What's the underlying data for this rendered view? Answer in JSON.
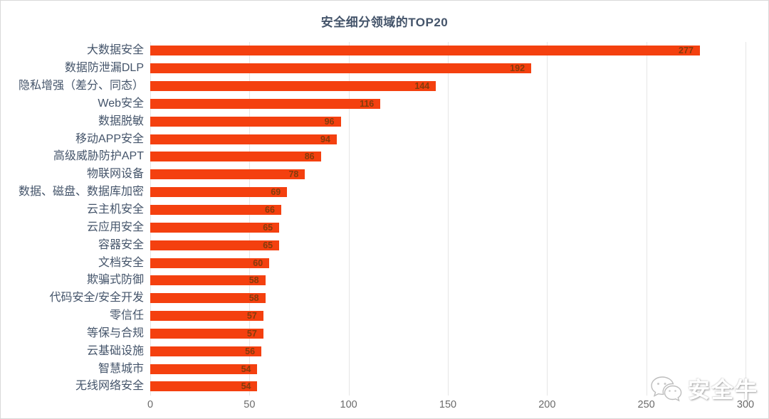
{
  "chart_data": {
    "type": "bar",
    "orientation": "horizontal",
    "title": "安全细分领域的TOP20",
    "categories": [
      "大数据安全",
      "数据防泄漏DLP",
      "隐私增强（差分、同态）",
      "Web安全",
      "数据脱敏",
      "移动APP安全",
      "高级威胁防护APT",
      "物联网设备",
      "数据、磁盘、数据库加密",
      "云主机安全",
      "云应用安全",
      "容器安全",
      "文档安全",
      "欺骗式防御",
      "代码安全/安全开发",
      "零信任",
      "等保与合规",
      "云基础设施",
      "智慧城市",
      "无线网络安全"
    ],
    "values": [
      277,
      192,
      144,
      116,
      96,
      94,
      86,
      78,
      69,
      66,
      65,
      65,
      60,
      58,
      58,
      57,
      57,
      56,
      54,
      54
    ],
    "xlabel": "",
    "ylabel": "",
    "xlim": [
      0,
      300
    ],
    "x_ticks": [
      0,
      50,
      100,
      150,
      200,
      250,
      300
    ],
    "grid": "vertical",
    "legend": "none",
    "value_labels_position": "inside-end",
    "colors": {
      "bar": "#f4400f",
      "value_label": "#843c0c",
      "title": "#44546a",
      "category_label": "#44546a",
      "tick_label": "#6b6b6b",
      "gridline": "#e6e6e6"
    }
  },
  "watermark": {
    "icon": "wechat-icon",
    "text": "安全牛"
  }
}
